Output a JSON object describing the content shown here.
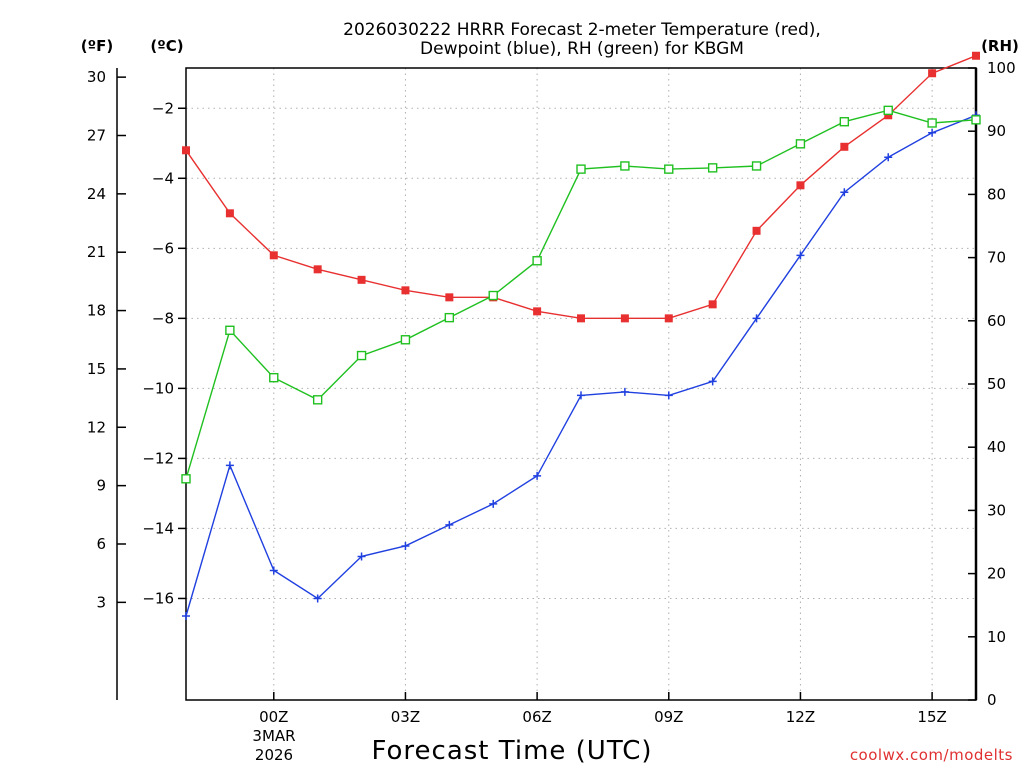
{
  "chart_data": {
    "type": "line",
    "title_line1": "2026030222 HRRR Forecast 2-meter Temperature (red),",
    "title_line2": "Dewpoint (blue), RH (green) for KBGM",
    "xlabel": "Forecast Time (UTC)",
    "credit": "coolwx.com/modelts",
    "date_label_line1": "3MAR",
    "date_label_line2": "2026",
    "units": {
      "fahrenheit": "(ºF)",
      "celsius": "(ºC)",
      "rh": "(RH)"
    },
    "x_hours": [
      0,
      1,
      2,
      3,
      4,
      5,
      6,
      7,
      8,
      9,
      10,
      11,
      12,
      13,
      14,
      15,
      16,
      17,
      18
    ],
    "x_ticks": [
      {
        "hour": 2,
        "label": "00Z"
      },
      {
        "hour": 5,
        "label": "03Z"
      },
      {
        "hour": 8,
        "label": "06Z"
      },
      {
        "hour": 11,
        "label": "09Z"
      },
      {
        "hour": 14,
        "label": "12Z"
      },
      {
        "hour": 17,
        "label": "15Z"
      }
    ],
    "y_celsius_range": [
      -18.9,
      -0.85
    ],
    "y_celsius_ticks": [
      {
        "value": -2,
        "label": "−2"
      },
      {
        "value": -4,
        "label": "−4"
      },
      {
        "value": -6,
        "label": "−6"
      },
      {
        "value": -8,
        "label": "−8"
      },
      {
        "value": -10,
        "label": "−10"
      },
      {
        "value": -12,
        "label": "−12"
      },
      {
        "value": -14,
        "label": "−14"
      },
      {
        "value": -16,
        "label": "−16"
      }
    ],
    "y_fahrenheit_ticks": [
      {
        "value": 30,
        "label": "30"
      },
      {
        "value": 27,
        "label": "27"
      },
      {
        "value": 24,
        "label": "24"
      },
      {
        "value": 21,
        "label": "21"
      },
      {
        "value": 18,
        "label": "18"
      },
      {
        "value": 15,
        "label": "15"
      },
      {
        "value": 12,
        "label": "12"
      },
      {
        "value": 9,
        "label": "9"
      },
      {
        "value": 6,
        "label": "6"
      },
      {
        "value": 3,
        "label": "3"
      }
    ],
    "y_rh_range": [
      0,
      100
    ],
    "y_rh_ticks": [
      {
        "value": 100,
        "label": "100"
      },
      {
        "value": 90,
        "label": "90"
      },
      {
        "value": 80,
        "label": "80"
      },
      {
        "value": 70,
        "label": "70"
      },
      {
        "value": 60,
        "label": "60"
      },
      {
        "value": 50,
        "label": "50"
      },
      {
        "value": 40,
        "label": "40"
      },
      {
        "value": 30,
        "label": "30"
      },
      {
        "value": 20,
        "label": "20"
      },
      {
        "value": 10,
        "label": "10"
      },
      {
        "value": 0,
        "label": "0"
      }
    ],
    "series": [
      {
        "name": "Temperature",
        "axis": "celsius",
        "color": "#e83030",
        "marker": "filled-square",
        "values": [
          -3.2,
          -5.0,
          -6.2,
          -6.6,
          -6.9,
          -7.2,
          -7.4,
          -7.4,
          -7.8,
          -8.0,
          -8.0,
          -8.0,
          -7.6,
          -5.5,
          -4.2,
          -3.1,
          -2.2,
          -1.0,
          -0.5
        ]
      },
      {
        "name": "Dewpoint",
        "axis": "celsius",
        "color": "#2040e0",
        "marker": "plus",
        "values": [
          -16.5,
          -12.2,
          -15.2,
          -16.0,
          -14.8,
          -14.5,
          -13.9,
          -13.3,
          -12.5,
          -10.2,
          -10.1,
          -10.2,
          -9.8,
          -8.0,
          -6.2,
          -4.4,
          -3.4,
          -2.7,
          -2.2
        ]
      },
      {
        "name": "RH",
        "axis": "rh",
        "color": "#20c020",
        "marker": "open-square",
        "values": [
          35,
          58.5,
          51,
          47.5,
          54.5,
          57,
          60.5,
          64,
          69.5,
          84,
          84.5,
          84,
          84.2,
          84.5,
          88,
          91.5,
          93.3,
          91.3,
          91.8
        ]
      }
    ]
  }
}
